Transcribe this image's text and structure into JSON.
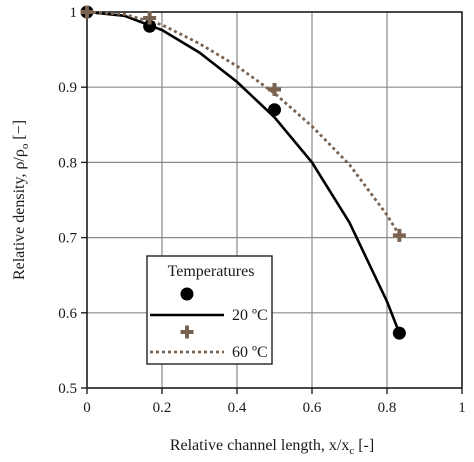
{
  "chart_data": {
    "type": "scatter",
    "xlabel": "Relative channel length, x/x",
    "xlabel_sub": "c",
    "xlabel_unit": " [-]",
    "ylabel": "Relative density, ρ/ρ",
    "ylabel_sub": "o",
    "ylabel_unit": " [−]",
    "xlim": [
      0,
      1
    ],
    "ylim": [
      0.5,
      1
    ],
    "x_ticks": [
      "0",
      "0.2",
      "0.4",
      "0.6",
      "0.8",
      "1"
    ],
    "y_ticks": [
      "0.5",
      "0.6",
      "0.7",
      "0.8",
      "0.9",
      "1"
    ],
    "grid": true,
    "legend": {
      "title": "Temperatures",
      "placement": "bottom-left",
      "entries": [
        "20 ºC",
        "60 ºC"
      ]
    },
    "series": [
      {
        "name": "20 ºC",
        "marker": "circle",
        "line_style": "solid",
        "color": "#000000",
        "x": [
          0,
          0.167,
          0.5,
          0.833
        ],
        "y": [
          1.0,
          0.981,
          0.87,
          0.573
        ],
        "fit_x": [
          0,
          0.1,
          0.2,
          0.3,
          0.4,
          0.5,
          0.6,
          0.7,
          0.8,
          0.833
        ],
        "fit_y": [
          1.0,
          0.995,
          0.976,
          0.946,
          0.907,
          0.86,
          0.8,
          0.72,
          0.615,
          0.573
        ]
      },
      {
        "name": "60 ºC",
        "marker": "plus",
        "line_style": "dotted",
        "color": "#7a6250",
        "x": [
          0,
          0.167,
          0.5,
          0.833
        ],
        "y": [
          1.0,
          0.992,
          0.897,
          0.703
        ],
        "fit_x": [
          0,
          0.1,
          0.2,
          0.3,
          0.4,
          0.5,
          0.6,
          0.7,
          0.8,
          0.833
        ],
        "fit_y": [
          1.0,
          0.997,
          0.983,
          0.958,
          0.928,
          0.892,
          0.848,
          0.797,
          0.73,
          0.703
        ]
      }
    ]
  }
}
